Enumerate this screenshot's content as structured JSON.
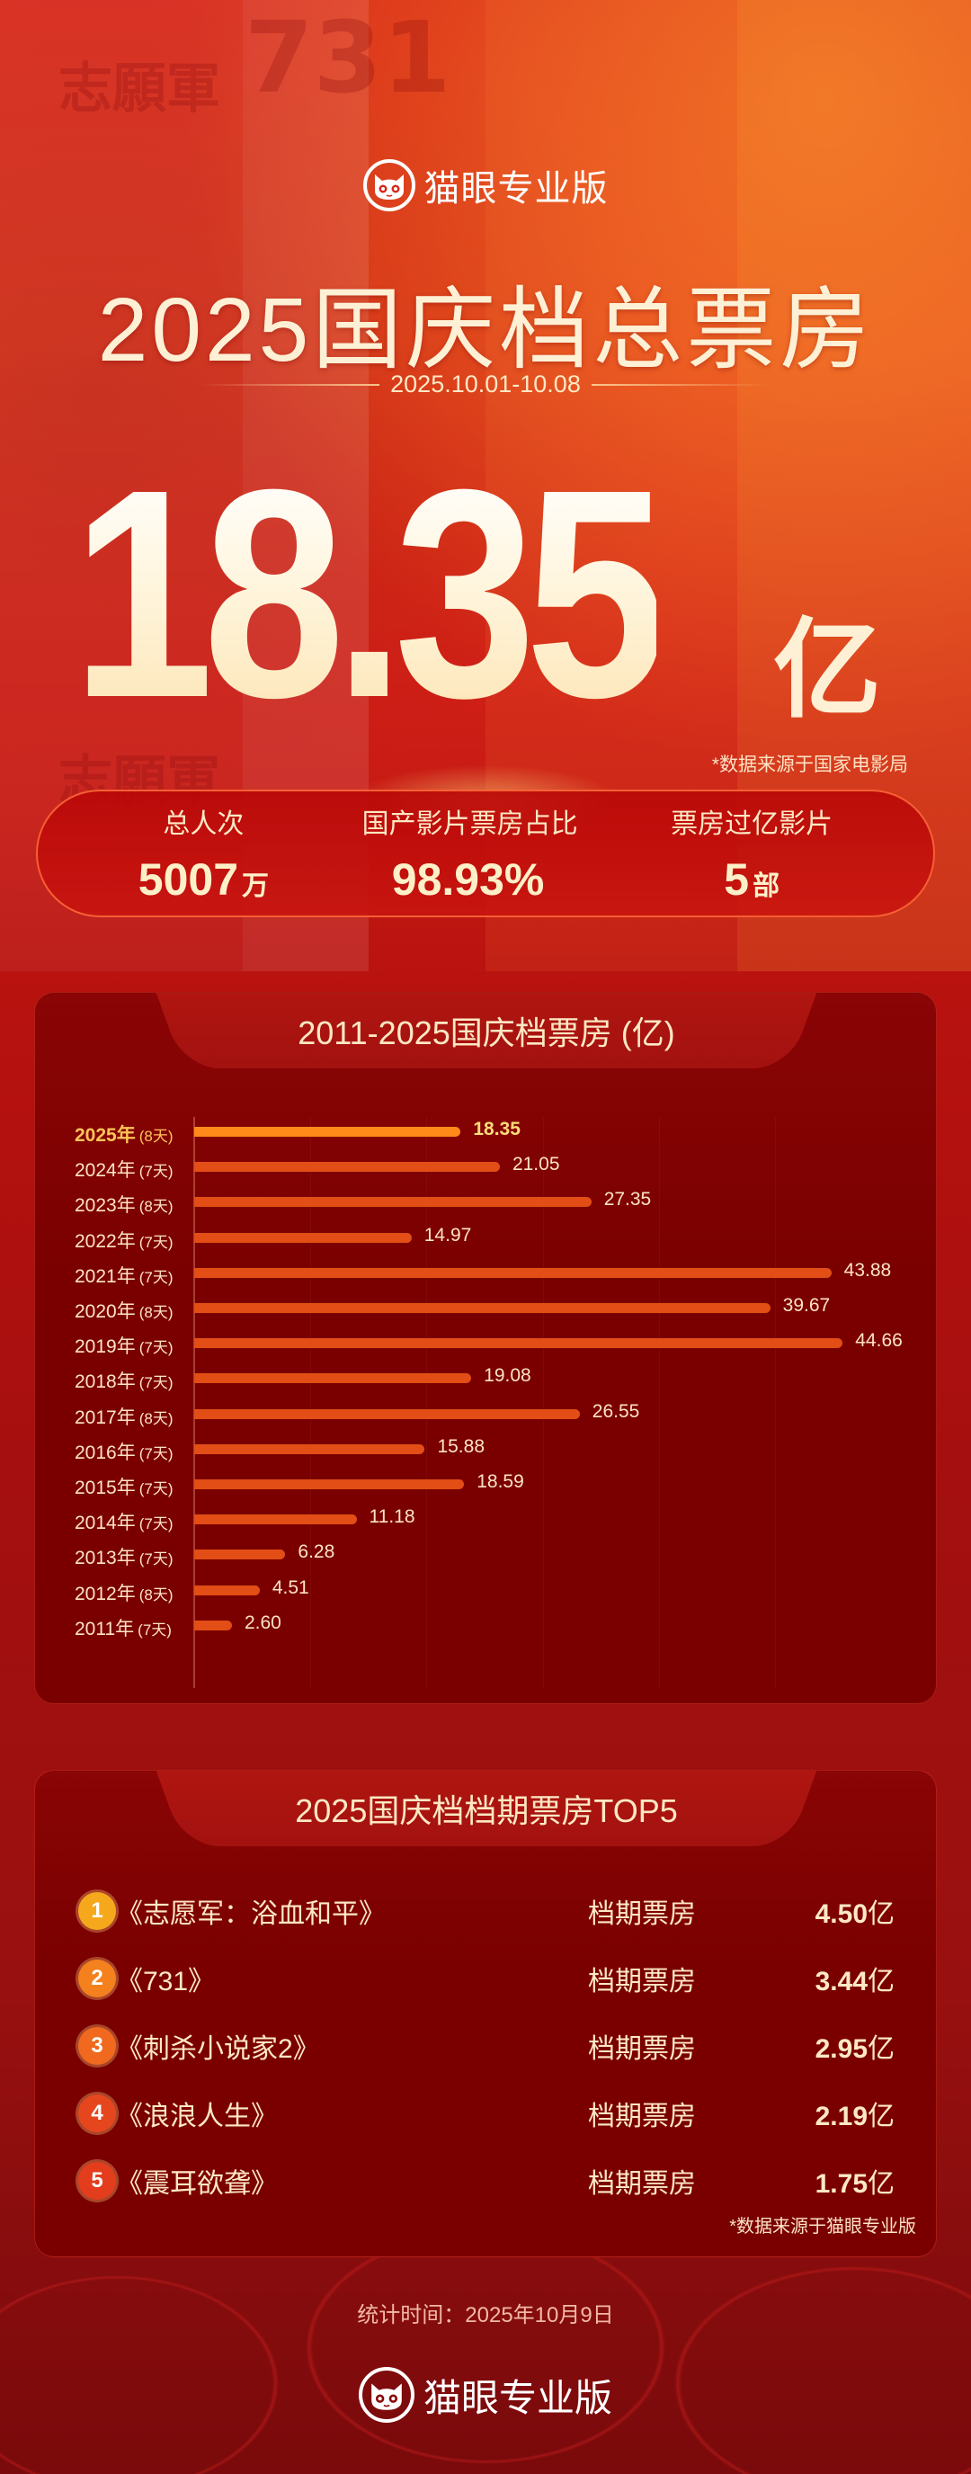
{
  "header": {
    "brand_name": "猫眼专业版",
    "title": "2025国庆档总票房",
    "date_range": "2025.10.01-10.08",
    "total_value": "18.35",
    "total_unit": "亿",
    "source_note": "*数据来源于国家电影局"
  },
  "stats": [
    {
      "label": "总人次",
      "value": "5007",
      "suffix": "万"
    },
    {
      "label": "国产影片票房占比",
      "value": "98.93%",
      "suffix": ""
    },
    {
      "label": "票房过亿影片",
      "value": "5",
      "suffix": "部"
    }
  ],
  "chart_section": {
    "title": "2011-2025国庆档票房 (亿)"
  },
  "chart_data": {
    "type": "bar",
    "orientation": "horizontal",
    "title": "2011-2025国庆档票房 (亿)",
    "xlabel": "",
    "ylabel": "",
    "categories": [
      "2025年",
      "2024年",
      "2023年",
      "2022年",
      "2021年",
      "2020年",
      "2019年",
      "2018年",
      "2017年",
      "2016年",
      "2015年",
      "2014年",
      "2013年",
      "2012年",
      "2011年"
    ],
    "days": [
      "(8天)",
      "(7天)",
      "(8天)",
      "(7天)",
      "(7天)",
      "(8天)",
      "(7天)",
      "(7天)",
      "(8天)",
      "(7天)",
      "(7天)",
      "(7天)",
      "(7天)",
      "(8天)",
      "(7天)"
    ],
    "values": [
      18.35,
      21.05,
      27.35,
      14.97,
      43.88,
      39.67,
      44.66,
      19.08,
      26.55,
      15.88,
      18.59,
      11.18,
      6.28,
      4.51,
      2.6
    ],
    "value_labels": [
      "18.35",
      "21.05",
      "27.35",
      "14.97",
      "43.88",
      "39.67",
      "44.66",
      "19.08",
      "26.55",
      "15.88",
      "18.59",
      "11.18",
      "6.28",
      "4.51",
      "2.60"
    ],
    "highlight_index": 0,
    "xlim": [
      0,
      48
    ],
    "grid": true,
    "colors": {
      "bar": "#e24e15",
      "highlight": "#ff8a1a"
    }
  },
  "top5": {
    "title": "2025国庆档档期票房TOP5",
    "items": [
      {
        "rank": "1",
        "title": "《志愿军：浴血和平》",
        "metric": "档期票房",
        "amount": "4.50",
        "unit": "亿",
        "color": "#f6a81c"
      },
      {
        "rank": "2",
        "title": "《731》",
        "metric": "档期票房",
        "amount": "3.44",
        "unit": "亿",
        "color": "#f4801e"
      },
      {
        "rank": "3",
        "title": "《刺杀小说家2》",
        "metric": "档期票房",
        "amount": "2.95",
        "unit": "亿",
        "color": "#f0691f"
      },
      {
        "rank": "4",
        "title": "《浪浪人生》",
        "metric": "档期票房",
        "amount": "2.19",
        "unit": "亿",
        "color": "#e6461e"
      },
      {
        "rank": "5",
        "title": "《震耳欲聋》",
        "metric": "档期票房",
        "amount": "1.75",
        "unit": "亿",
        "color": "#e33d1d"
      }
    ],
    "source_note": "*数据来源于猫眼专业版"
  },
  "footer": {
    "stat_time": "统计时间：2025年10月9日",
    "brand_name": "猫眼专业版"
  }
}
